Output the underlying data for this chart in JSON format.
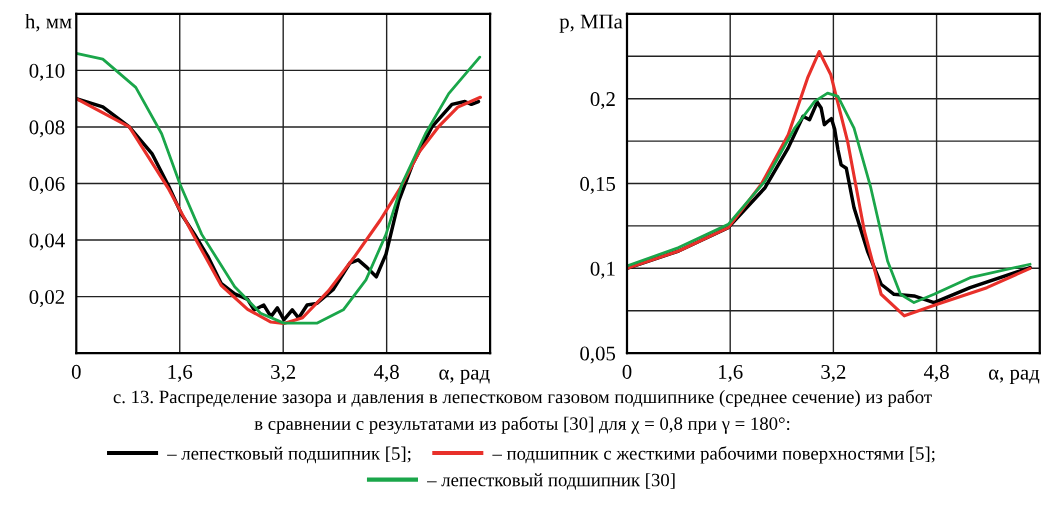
{
  "chart_data": [
    {
      "type": "line",
      "ylabel": "h, мм",
      "xlabel": "α, рад",
      "xlim": [
        0,
        6.4
      ],
      "ylim": [
        0,
        0.12
      ],
      "xticks": [
        {
          "value": 0,
          "label": "0"
        },
        {
          "value": 1.6,
          "label": "1,6"
        },
        {
          "value": 3.2,
          "label": "3,2"
        },
        {
          "value": 4.8,
          "label": "4,8"
        }
      ],
      "yticks": [
        {
          "value": 0,
          "label": null
        },
        {
          "value": 0.02,
          "label": "0,02"
        },
        {
          "value": 0.04,
          "label": "0,04"
        },
        {
          "value": 0.06,
          "label": "0,06"
        },
        {
          "value": 0.08,
          "label": "0,08"
        },
        {
          "value": 0.1,
          "label": "0,10"
        },
        {
          "value": 0.12,
          "label": null
        }
      ],
      "grid": true,
      "legend": "bottom",
      "annotations": [
        "c. 13. Распределение зазора и давления в лепестковом газовом подшипнике (среднее сечение) из работ",
        "в сравнении с результатами из работы [30] для χ = 0,8 при γ = 180°:"
      ],
      "series": [
        {
          "name": "– лепестковый подшипник [5];",
          "color": "#000000",
          "x": [
            0,
            0.41,
            0.82,
            1.17,
            1.43,
            1.63,
            1.83,
            2.04,
            2.24,
            2.45,
            2.65,
            2.75,
            2.9,
            3.01,
            3.11,
            3.21,
            3.34,
            3.44,
            3.57,
            3.72,
            3.97,
            4.23,
            4.36,
            4.48,
            4.64,
            4.79,
            4.99,
            5.2,
            5.5,
            5.81,
            6.01,
            6.11,
            6.22
          ],
          "values": [
            0.09,
            0.0871,
            0.08,
            0.0706,
            0.059,
            0.049,
            0.042,
            0.034,
            0.0247,
            0.021,
            0.019,
            0.0153,
            0.017,
            0.0129,
            0.016,
            0.0118,
            0.0153,
            0.0124,
            0.017,
            0.0176,
            0.0224,
            0.0318,
            0.033,
            0.0306,
            0.027,
            0.035,
            0.054,
            0.0668,
            0.08,
            0.088,
            0.089,
            0.088,
            0.089
          ]
        },
        {
          "name": "– подшипник с жесткими рабочими поверхностями [5];",
          "color": "#e8302a",
          "x": [
            0,
            0.82,
            1.43,
            1.83,
            2.24,
            2.65,
            3.01,
            3.21,
            3.5,
            3.9,
            4.3,
            4.7,
            5.0,
            5.3,
            5.6,
            5.9,
            6.25
          ],
          "values": [
            0.09,
            0.08,
            0.058,
            0.041,
            0.024,
            0.0155,
            0.011,
            0.0105,
            0.0125,
            0.022,
            0.034,
            0.047,
            0.058,
            0.071,
            0.08,
            0.087,
            0.0905
          ]
        },
        {
          "name": "– лепестковый подшипник [30]",
          "color": "#1aa64a",
          "x": [
            0,
            0.41,
            0.92,
            1.32,
            1.6,
            1.94,
            2.45,
            2.85,
            3.21,
            3.72,
            4.13,
            4.48,
            4.79,
            5.04,
            5.4,
            5.76,
            6.24
          ],
          "values": [
            0.106,
            0.104,
            0.094,
            0.0776,
            0.06,
            0.042,
            0.0235,
            0.0141,
            0.0106,
            0.0106,
            0.0153,
            0.0259,
            0.042,
            0.06,
            0.0776,
            0.0918,
            0.1047
          ]
        }
      ]
    },
    {
      "type": "line",
      "ylabel": "p, МПа",
      "xlabel": "α, рад",
      "xlim": [
        0,
        6.4
      ],
      "ylim": [
        0.05,
        0.25
      ],
      "xticks": [
        {
          "value": 0,
          "label": "0"
        },
        {
          "value": 1.6,
          "label": "1,6"
        },
        {
          "value": 3.2,
          "label": "3,2"
        },
        {
          "value": 4.8,
          "label": "4,8"
        }
      ],
      "yticks": [
        {
          "value": 0.05,
          "label": "0,05"
        },
        {
          "value": 0.075,
          "label": null
        },
        {
          "value": 0.1,
          "label": "0,1"
        },
        {
          "value": 0.125,
          "label": null
        },
        {
          "value": 0.15,
          "label": "0,15"
        },
        {
          "value": 0.175,
          "label": null
        },
        {
          "value": 0.2,
          "label": "0,2"
        },
        {
          "value": 0.225,
          "label": null
        },
        {
          "value": 0.25,
          "label": null
        }
      ],
      "grid": true,
      "series": [
        {
          "color": "#000000",
          "x": [
            0,
            0.8,
            1.57,
            2.14,
            2.5,
            2.73,
            2.83,
            2.95,
            3.01,
            3.06,
            3.12,
            3.17,
            3.22,
            3.27,
            3.32,
            3.4,
            3.52,
            3.73,
            3.94,
            4.14,
            4.45,
            4.76,
            5.32,
            6.25
          ],
          "values": [
            0.1,
            0.1102,
            0.124,
            0.1475,
            0.171,
            0.1896,
            0.1876,
            0.198,
            0.1945,
            0.1847,
            0.1868,
            0.1882,
            0.182,
            0.17,
            0.161,
            0.159,
            0.1357,
            0.11,
            0.0906,
            0.0847,
            0.0837,
            0.0798,
            0.0886,
            0.1004
          ]
        },
        {
          "color": "#e8302a",
          "x": [
            0,
            0.8,
            1.57,
            2.08,
            2.5,
            2.8,
            2.98,
            3.16,
            3.42,
            3.68,
            3.94,
            4.3,
            4.81,
            5.58,
            6.25
          ],
          "values": [
            0.1,
            0.1102,
            0.124,
            0.1494,
            0.1788,
            0.2122,
            0.2278,
            0.2141,
            0.1749,
            0.122,
            0.0847,
            0.072,
            0.0788,
            0.0886,
            0.1
          ]
        },
        {
          "color": "#1aa64a",
          "x": [
            0,
            0.8,
            1.57,
            2.14,
            2.6,
            2.91,
            3.11,
            3.27,
            3.52,
            3.78,
            4.04,
            4.24,
            4.45,
            4.76,
            5.32,
            6.25
          ],
          "values": [
            0.1014,
            0.1122,
            0.1259,
            0.1514,
            0.1827,
            0.1984,
            0.2033,
            0.2014,
            0.1827,
            0.1475,
            0.1043,
            0.0847,
            0.0798,
            0.0847,
            0.0945,
            0.1024
          ]
        }
      ]
    }
  ]
}
